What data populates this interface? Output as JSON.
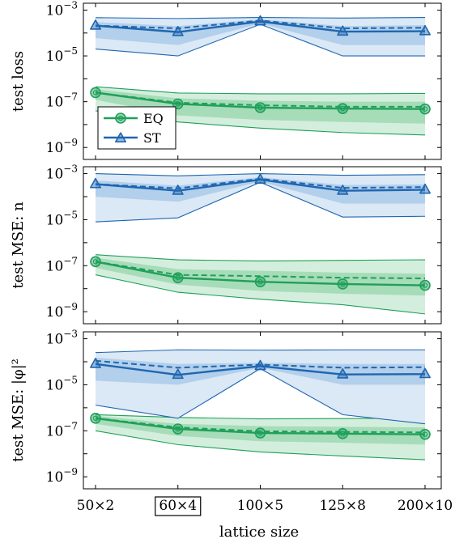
{
  "chart_data": {
    "type": "line",
    "shared_x": {
      "categories": [
        "50×2",
        "60×4",
        "100×5",
        "125×8",
        "200×10"
      ],
      "highlighted_category": "60×4",
      "xlabel": "lattice size"
    },
    "legend": {
      "placement": "bottom-left of top panel",
      "entries": [
        {
          "name": "EQ",
          "marker": "circle",
          "color": "#1fa05a"
        },
        {
          "name": "ST",
          "marker": "triangle",
          "color": "#1f66b0"
        }
      ]
    },
    "y_scale": "log",
    "y_ticks": [
      {
        "base": "10",
        "exp": "−9",
        "value": 1e-09
      },
      {
        "base": "10",
        "exp": "−7",
        "value": 1e-07
      },
      {
        "base": "10",
        "exp": "−5",
        "value": 1e-05
      },
      {
        "base": "10",
        "exp": "−3",
        "value": 0.001
      }
    ],
    "colors": {
      "EQ": "#1fa05a",
      "EQ_band_outer": "#d4eedd",
      "EQ_band_inner": "#a7dcb9",
      "ST": "#1f66b0",
      "ST_band_outer": "#dbe8f5",
      "ST_band_inner": "#b2cfeb"
    },
    "panels": [
      {
        "ylabel": "test loss",
        "ylim": [
          3e-10,
          0.002
        ],
        "series": [
          {
            "name": "EQ",
            "median": [
              2.5e-07,
              8e-08,
              5.5e-08,
              5e-08,
              4.8e-08
            ],
            "mean": [
              2.5e-07,
              9e-08,
              7e-08,
              6e-08,
              6e-08
            ],
            "inner_band": {
              "low": [
                1.2e-07,
                2.5e-08,
                1.6e-08,
                1.3e-08,
                1.1e-08
              ],
              "high": [
                3.5e-07,
                1.4e-07,
                1.1e-07,
                1e-07,
                1e-07
              ]
            },
            "outer_band": {
              "low": [
                4e-08,
                1.3e-08,
                7e-09,
                4.5e-09,
                3.5e-09
              ],
              "high": [
                4.5e-07,
                2.4e-07,
                2.2e-07,
                2.2e-07,
                2.3e-07
              ]
            }
          },
          {
            "name": "ST",
            "median": [
              0.00021,
              0.00011,
              0.00032,
              0.000115,
              0.00012
            ],
            "mean": [
              0.00021,
              0.00016,
              0.00035,
              0.00016,
              0.00017
            ],
            "inner_band": {
              "low": [
                6e-05,
                3e-05,
                0.00026,
                3e-05,
                3e-05
              ],
              "high": [
                0.0003,
                0.0002,
                0.0004,
                0.0002,
                0.00022
              ]
            },
            "outer_band": {
              "low": [
                2e-05,
                1e-05,
                0.00024,
                1e-05,
                1e-05
              ],
              "high": [
                0.00047,
                0.00043,
                0.00048,
                0.00045,
                0.00048
              ]
            }
          }
        ]
      },
      {
        "ylabel": "test MSE: n",
        "ylim": [
          3e-10,
          0.002
        ],
        "series": [
          {
            "name": "EQ",
            "median": [
              1.5e-07,
              3e-08,
              2e-08,
              1.6e-08,
              1.4e-08
            ],
            "mean": [
              1.5e-07,
              4e-08,
              3.5e-08,
              3e-08,
              2.8e-08
            ],
            "inner_band": {
              "low": [
                8e-08,
                1.5e-08,
                8e-09,
                6e-09,
                5e-09
              ],
              "high": [
                2.2e-07,
                7e-08,
                6e-08,
                5e-08,
                4.5e-08
              ]
            },
            "outer_band": {
              "low": [
                4e-08,
                7e-09,
                3.5e-09,
                2e-09,
                8e-10
              ],
              "high": [
                3e-07,
                1.8e-07,
                1.6e-07,
                1.7e-07,
                1.8e-07
              ]
            }
          },
          {
            "name": "ST",
            "median": [
              0.00035,
              0.00018,
              0.00055,
              0.00018,
              0.0002
            ],
            "mean": [
              0.00035,
              0.00023,
              0.0006,
              0.00024,
              0.00026
            ],
            "inner_band": {
              "low": [
                0.0001,
                6e-05,
                0.00045,
                5e-05,
                5e-05
              ],
              "high": [
                0.0005,
                0.0003,
                0.0007,
                0.00032,
                0.00034
              ]
            },
            "outer_band": {
              "low": [
                8e-06,
                1.2e-05,
                0.00042,
                1.3e-05,
                1.4e-05
              ],
              "high": [
                0.001,
                0.0008,
                0.001,
                0.00085,
                0.0009
              ]
            }
          }
        ]
      },
      {
        "ylabel": "test MSE: |φ|²",
        "ylim": [
          3e-10,
          0.002
        ],
        "series": [
          {
            "name": "EQ",
            "median": [
              3.5e-07,
              1.2e-07,
              8e-08,
              7.5e-08,
              7e-08
            ],
            "mean": [
              3.5e-07,
              1.4e-07,
              9.5e-08,
              9e-08,
              8.5e-08
            ],
            "inner_band": {
              "low": [
                2e-07,
                6e-08,
                3.5e-08,
                3e-08,
                2.5e-08
              ],
              "high": [
                4.5e-07,
                2e-07,
                1.6e-07,
                1.5e-07,
                1.4e-07
              ]
            },
            "outer_band": {
              "low": [
                1e-07,
                2.5e-08,
                1.2e-08,
                8e-09,
                5.5e-09
              ],
              "high": [
                5e-07,
                3.8e-07,
                3.3e-07,
                3.4e-07,
                3.6e-07
              ]
            }
          },
          {
            "name": "ST",
            "median": [
              8e-05,
              2.7e-05,
              6.5e-05,
              2.8e-05,
              2.9e-05
            ],
            "mean": [
              0.00011,
              5.5e-05,
              7.5e-05,
              5.5e-05,
              5.8e-05
            ],
            "inner_band": {
              "low": [
                1.5e-05,
                1e-05,
                5.5e-05,
                1e-05,
                1e-05
              ],
              "high": [
                0.00015,
                8e-05,
                9e-05,
                8e-05,
                8e-05
              ]
            },
            "outer_band": {
              "low": [
                1.3e-06,
                3.5e-07,
                5e-05,
                5e-07,
                2e-07
              ],
              "high": [
                0.00025,
                0.00033,
                0.00032,
                0.00033,
                0.00033
              ]
            }
          }
        ]
      }
    ]
  }
}
